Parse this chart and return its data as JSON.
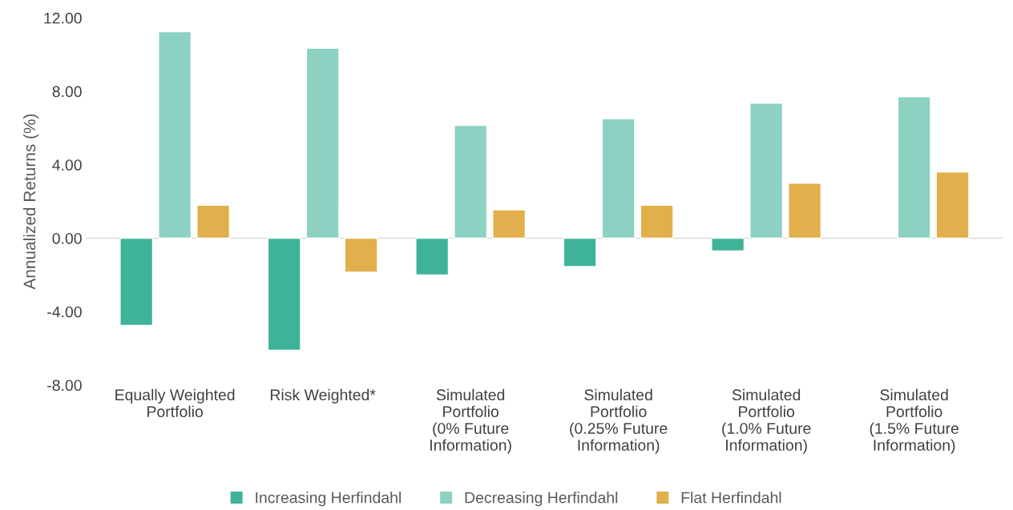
{
  "chart_data": {
    "type": "bar",
    "ylabel": "Annualized Returns (%)",
    "categories": [
      "Equally Weighted\nPortfolio",
      "Risk Weighted*",
      "Simulated\nPortfolio\n(0% Future\nInformation)",
      "Simulated\nPortfolio\n(0.25% Future\nInformation)",
      "Simulated\nPortfolio\n(1.0% Future\nInformation)",
      "Simulated\nPortfolio\n(1.5% Future\nInformation)"
    ],
    "series": [
      {
        "name": "Increasing Herfindahl",
        "color": "#3eb39a",
        "values": [
          -4.75,
          -6.1,
          -2.0,
          -1.55,
          -0.7,
          null
        ]
      },
      {
        "name": "Decreasing Herfindahl",
        "color": "#8dd1c3",
        "values": [
          11.25,
          10.35,
          6.15,
          6.5,
          7.35,
          7.7
        ]
      },
      {
        "name": "Flat Herfindahl",
        "color": "#e1af4b",
        "values": [
          1.8,
          -1.85,
          1.55,
          1.8,
          3.0,
          3.6
        ]
      }
    ],
    "ylim": [
      -8,
      12
    ],
    "yticks": [
      {
        "value": -8,
        "label": "-8.00"
      },
      {
        "value": -4,
        "label": "-4.00"
      },
      {
        "value": 0,
        "label": "0.00"
      },
      {
        "value": 4,
        "label": "4.00"
      },
      {
        "value": 8,
        "label": "8.00"
      },
      {
        "value": 12,
        "label": "12.00"
      }
    ],
    "ref_lines": [
      {
        "axis": "y",
        "value": 0,
        "color": "#d9d9d9"
      }
    ],
    "grid": false,
    "legend": "bottom"
  }
}
